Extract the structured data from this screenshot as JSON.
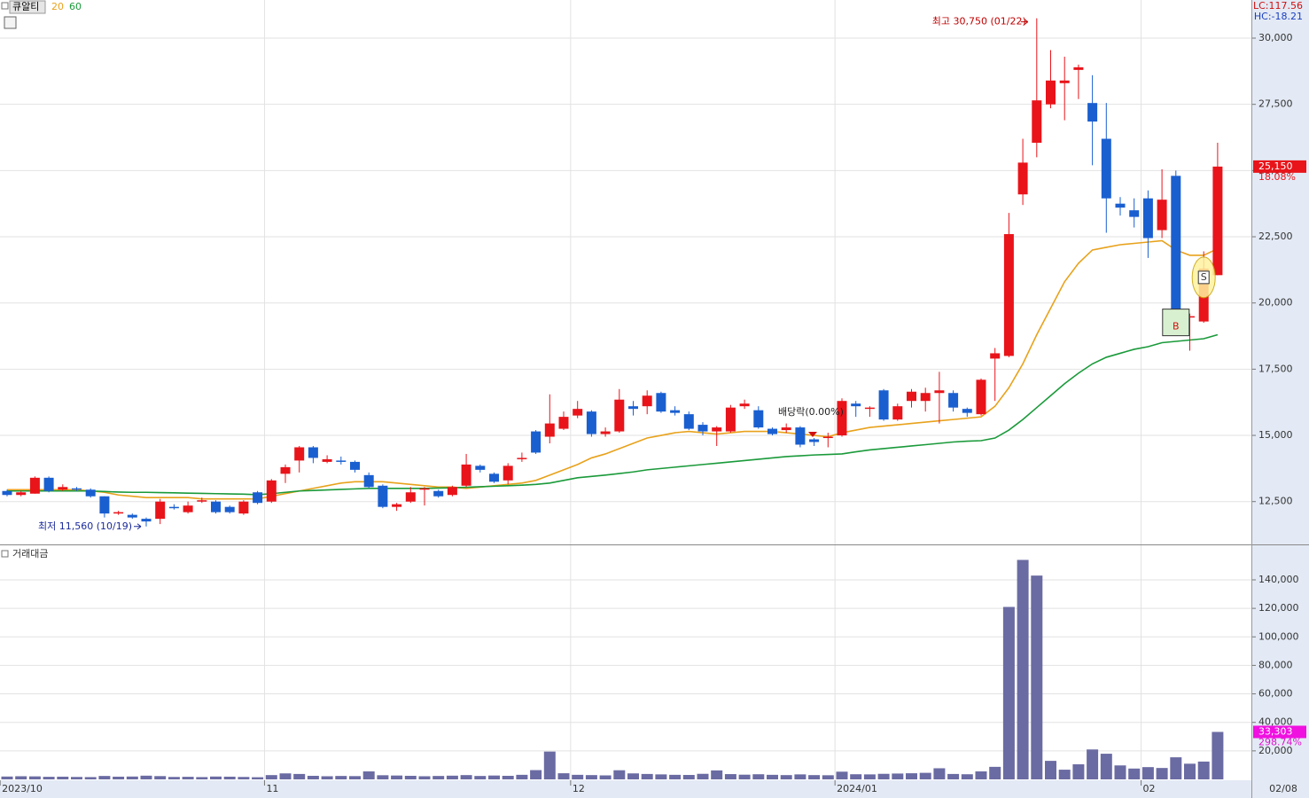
{
  "chart_data": [
    {
      "type": "candlestick",
      "title": "큐알티",
      "categories": [
        "2023/10",
        null,
        null,
        null,
        null,
        null,
        null,
        null,
        null,
        null,
        null,
        null,
        null,
        null,
        null,
        null,
        null,
        null,
        null,
        "11",
        null,
        null,
        null,
        null,
        null,
        null,
        null,
        null,
        null,
        null,
        null,
        null,
        null,
        null,
        null,
        null,
        null,
        null,
        null,
        null,
        null,
        "12",
        null,
        null,
        null,
        null,
        null,
        null,
        null,
        null,
        null,
        null,
        null,
        null,
        null,
        null,
        null,
        null,
        null,
        null,
        "2024/01",
        null,
        null,
        null,
        null,
        null,
        null,
        null,
        null,
        null,
        null,
        null,
        null,
        null,
        null,
        null,
        null,
        null,
        null,
        null,
        null,
        null,
        "02",
        null,
        null,
        null,
        null,
        null
      ],
      "last_date": "02/08",
      "open": [
        12900,
        12750,
        12800,
        13400,
        12950,
        13000,
        12950,
        12700,
        12050,
        12000,
        11850,
        11850,
        12300,
        12100,
        12500,
        12500,
        12300,
        12050,
        12850,
        12500,
        13550,
        14050,
        14550,
        14000,
        14050,
        14000,
        13500,
        13100,
        12300,
        12500,
        12950,
        12900,
        12750,
        13100,
        13850,
        13550,
        13300,
        14100,
        15150,
        14950,
        15250,
        15750,
        15900,
        15050,
        15150,
        16100,
        16100,
        16600,
        15950,
        15800,
        15400,
        15150,
        15150,
        16100,
        15950,
        15250,
        15200,
        15300,
        14850,
        14900,
        15000,
        16200,
        16000,
        16700,
        15600,
        16300,
        16300,
        16600,
        16600,
        16000,
        15800,
        17900,
        18000,
        24100,
        26050,
        27500,
        28300,
        28800,
        27550,
        26200,
        23750,
        23500,
        23950,
        22750,
        24800,
        19450,
        19300,
        21050
      ],
      "high": [
        12950,
        12900,
        13450,
        13450,
        13150,
        13050,
        13000,
        12700,
        12150,
        12050,
        11900,
        12600,
        12400,
        12500,
        12650,
        12550,
        12350,
        12550,
        12900,
        13350,
        13900,
        14600,
        14600,
        14250,
        14200,
        14050,
        13600,
        13150,
        12450,
        13050,
        13050,
        12950,
        13100,
        14300,
        13900,
        13600,
        13950,
        14350,
        15200,
        16550,
        15900,
        16300,
        15950,
        15300,
        16750,
        16300,
        16700,
        16650,
        16100,
        15900,
        15500,
        15350,
        16150,
        16350,
        16100,
        15300,
        15450,
        15350,
        14900,
        15100,
        16400,
        16300,
        16100,
        16750,
        16200,
        16750,
        16800,
        17400,
        16700,
        16050,
        17150,
        18300,
        23400,
        26200,
        30750,
        29550,
        29300,
        29000,
        28600,
        27550,
        24000,
        23950,
        24250,
        25050,
        25000,
        19600,
        21950,
        26050
      ],
      "low": [
        12700,
        12700,
        12800,
        12850,
        12900,
        12900,
        12650,
        11900,
        12000,
        11850,
        11560,
        11650,
        12200,
        12050,
        12450,
        12050,
        12050,
        12000,
        12400,
        12450,
        13200,
        13600,
        13950,
        13950,
        13900,
        13600,
        13000,
        12250,
        12150,
        12450,
        12350,
        12650,
        12700,
        13050,
        13600,
        13200,
        13150,
        14000,
        14300,
        14700,
        15200,
        15650,
        14950,
        14950,
        15100,
        15750,
        15800,
        15850,
        15750,
        15200,
        15000,
        14600,
        15100,
        16000,
        15250,
        15000,
        15100,
        14550,
        14600,
        14550,
        14950,
        15700,
        15700,
        15550,
        15550,
        16050,
        15900,
        15450,
        15900,
        15700,
        15750,
        16300,
        17950,
        23700,
        25500,
        27350,
        26900,
        27700,
        25200,
        22650,
        23300,
        22850,
        21700,
        22450,
        19400,
        18200,
        19250,
        21050
      ],
      "close": [
        12750,
        12850,
        13400,
        12900,
        13050,
        12950,
        12700,
        12050,
        12100,
        11900,
        11750,
        12500,
        12250,
        12350,
        12550,
        12100,
        12100,
        12500,
        12450,
        13300,
        13800,
        14550,
        14150,
        14100,
        14000,
        13700,
        13050,
        12300,
        12400,
        12850,
        13000,
        12700,
        13050,
        13900,
        13700,
        13250,
        13850,
        14150,
        14350,
        15450,
        15700,
        16000,
        15050,
        15150,
        16350,
        16000,
        16500,
        15900,
        15850,
        15250,
        15150,
        15300,
        16050,
        16200,
        15300,
        15050,
        15300,
        14650,
        14750,
        14950,
        16300,
        16100,
        16050,
        15600,
        16100,
        16650,
        16600,
        16700,
        16050,
        15850,
        17100,
        18100,
        22600,
        25300,
        27650,
        28400,
        28400,
        28900,
        26850,
        23950,
        23600,
        23250,
        22450,
        23900,
        19500,
        19500,
        21300,
        25150
      ],
      "up_color": "#e8141a",
      "down_color": "#1a5fd0",
      "series": [
        {
          "name": "20",
          "color": "#e8a21c",
          "values": [
            12950,
            12950,
            12950,
            12950,
            12950,
            12950,
            12900,
            12850,
            12750,
            12700,
            12650,
            12650,
            12650,
            12650,
            12600,
            12600,
            12600,
            12600,
            12600,
            12700,
            12800,
            12900,
            13000,
            13100,
            13200,
            13250,
            13250,
            13250,
            13200,
            13150,
            13100,
            13050,
            13050,
            13000,
            13050,
            13100,
            13150,
            13200,
            13300,
            13500,
            13700,
            13900,
            14150,
            14300,
            14500,
            14700,
            14900,
            15000,
            15100,
            15150,
            15100,
            15050,
            15100,
            15150,
            15150,
            15150,
            15100,
            15050,
            15000,
            14950,
            15100,
            15200,
            15300,
            15350,
            15400,
            15450,
            15500,
            15550,
            15600,
            15650,
            15700,
            16100,
            16800,
            17700,
            18800,
            19800,
            20800,
            21500,
            22000,
            22100,
            22200,
            22250,
            22300,
            22350,
            22000,
            21800,
            21800,
            22050
          ]
        },
        {
          "name": "60",
          "color": "#1a9a3a",
          "values": [
            12900,
            12900,
            12900,
            12900,
            12900,
            12900,
            12900,
            12880,
            12860,
            12850,
            12850,
            12840,
            12830,
            12820,
            12810,
            12800,
            12790,
            12780,
            12760,
            12800,
            12850,
            12900,
            12920,
            12940,
            12960,
            12980,
            13000,
            13000,
            13000,
            13000,
            13000,
            13010,
            13020,
            13040,
            13060,
            13080,
            13100,
            13120,
            13150,
            13200,
            13300,
            13400,
            13450,
            13500,
            13560,
            13620,
            13700,
            13750,
            13800,
            13850,
            13900,
            13950,
            14000,
            14050,
            14100,
            14150,
            14200,
            14230,
            14260,
            14280,
            14300,
            14380,
            14450,
            14500,
            14550,
            14600,
            14650,
            14700,
            14750,
            14780,
            14800,
            14900,
            15200,
            15600,
            16050,
            16500,
            16950,
            17350,
            17700,
            17950,
            18100,
            18250,
            18350,
            18500,
            18550,
            18600,
            18650,
            18800
          ]
        }
      ],
      "ylim": [
        10950,
        31440
      ],
      "yticks": [
        {
          "value": 12500,
          "label": "12,500"
        },
        {
          "value": 15000,
          "label": "15,000"
        },
        {
          "value": 17500,
          "label": "17,500"
        },
        {
          "value": 20000,
          "label": "20,000"
        },
        {
          "value": 22500,
          "label": "22,500"
        },
        {
          "value": 25000,
          "label": "25,000"
        },
        {
          "value": 27500,
          "label": "27,500"
        },
        {
          "value": 30000,
          "label": "30,000"
        }
      ],
      "grid": true,
      "annotations": [
        "최고 30,750 (01/22)",
        "최저 11,560 (10/19)",
        "배당락(0.00%)"
      ],
      "signals": [
        "B",
        "S"
      ],
      "price_tag": {
        "label": "25,150",
        "change": "18.08%"
      },
      "info": [
        "LC:117.56",
        "HC:-18.21"
      ]
    },
    {
      "type": "bar",
      "title": "거래대금",
      "color": "#6b6ba3",
      "values": [
        2000,
        2200,
        2100,
        1800,
        1900,
        1700,
        1600,
        2400,
        1900,
        2000,
        2600,
        2300,
        1700,
        1800,
        1600,
        2000,
        1900,
        1700,
        1500,
        3000,
        4200,
        3800,
        2500,
        2200,
        2400,
        2300,
        5600,
        2900,
        2700,
        2500,
        2200,
        2400,
        2600,
        3000,
        2400,
        2700,
        2500,
        3200,
        6500,
        19500,
        4300,
        3200,
        3000,
        2800,
        6400,
        4200,
        3800,
        3500,
        3200,
        3100,
        3900,
        6300,
        3700,
        3300,
        3600,
        3200,
        3000,
        3500,
        3000,
        2900,
        5400,
        3600,
        3500,
        3900,
        4100,
        4300,
        4600,
        7800,
        3800,
        3600,
        5600,
        8800,
        121000,
        154000,
        143000,
        13000,
        6800,
        10600,
        21000,
        18000,
        9800,
        7600,
        8600,
        8000,
        15500,
        11000,
        12500,
        33303
      ],
      "ylim": [
        0,
        163000
      ],
      "yticks": [
        {
          "value": 20000,
          "label": "20,000"
        },
        {
          "value": 40000,
          "label": "40,000"
        },
        {
          "value": 60000,
          "label": "60,000"
        },
        {
          "value": 80000,
          "label": "80,000"
        },
        {
          "value": 100000,
          "label": "100,000"
        },
        {
          "value": 120000,
          "label": "120,000"
        },
        {
          "value": 140000,
          "label": "140,000"
        }
      ],
      "grid": true,
      "volume_tag": {
        "label": "33,303",
        "ratio": "298.74%"
      }
    }
  ]
}
